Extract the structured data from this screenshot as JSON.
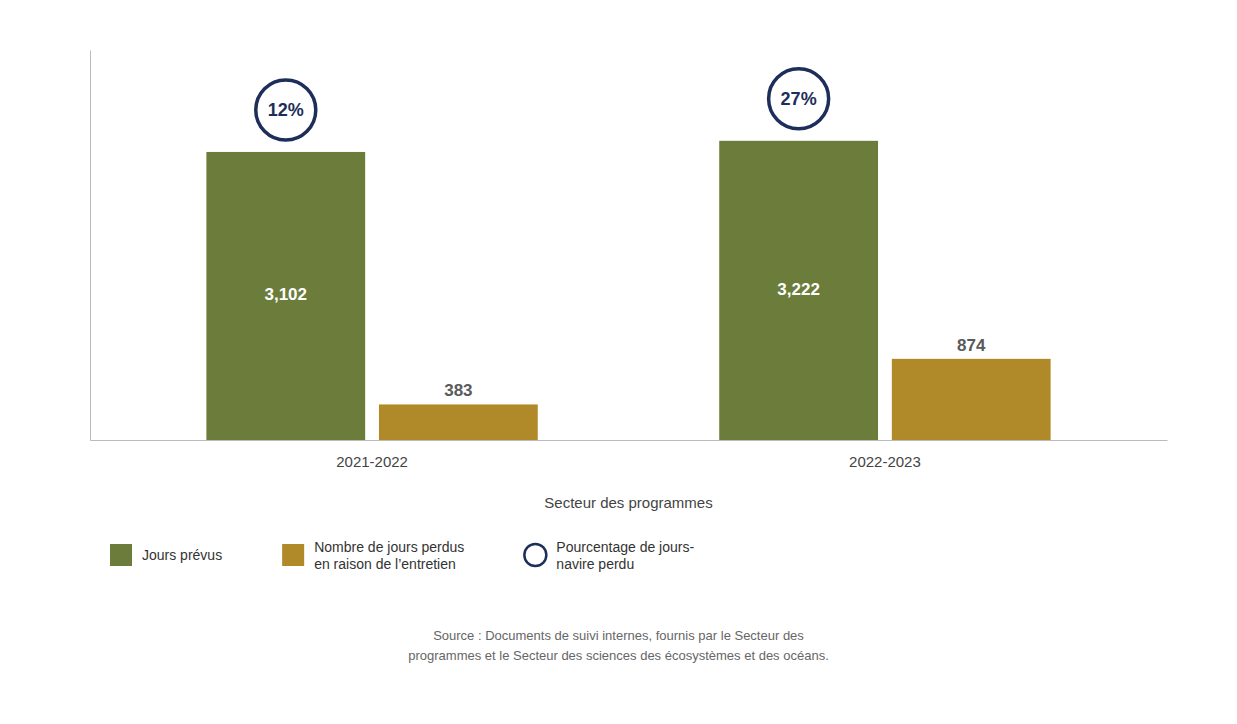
{
  "chart_data": {
    "type": "bar",
    "categories": [
      "2021-2022",
      "2022-2023"
    ],
    "series": [
      {
        "name": "Jours prévus",
        "color": "#6b7c3b",
        "values": [
          3102,
          3222
        ],
        "value_labels": [
          "3,102",
          "3,222"
        ]
      },
      {
        "name": "Nombre de jours perdus\nen raison de l’entretien",
        "color": "#b08a28",
        "values": [
          383,
          874
        ]
      }
    ],
    "percentages": {
      "name": "Pourcentage de jours-\nnavire perdu",
      "color": "#1e2e5a",
      "marker": "circle",
      "values": [
        12,
        27
      ],
      "value_labels": [
        "12%",
        "27%"
      ]
    },
    "xlabel": "Secteur des programmes",
    "source": [
      "Source : Documents de suivi internes, fournis par le Secteur des",
      "programmes et le Secteur des sciences des écosystèmes et des océans."
    ],
    "ylim": [
      0,
      4200
    ],
    "data_labels": true,
    "tick_labels": "x",
    "grid": false
  }
}
